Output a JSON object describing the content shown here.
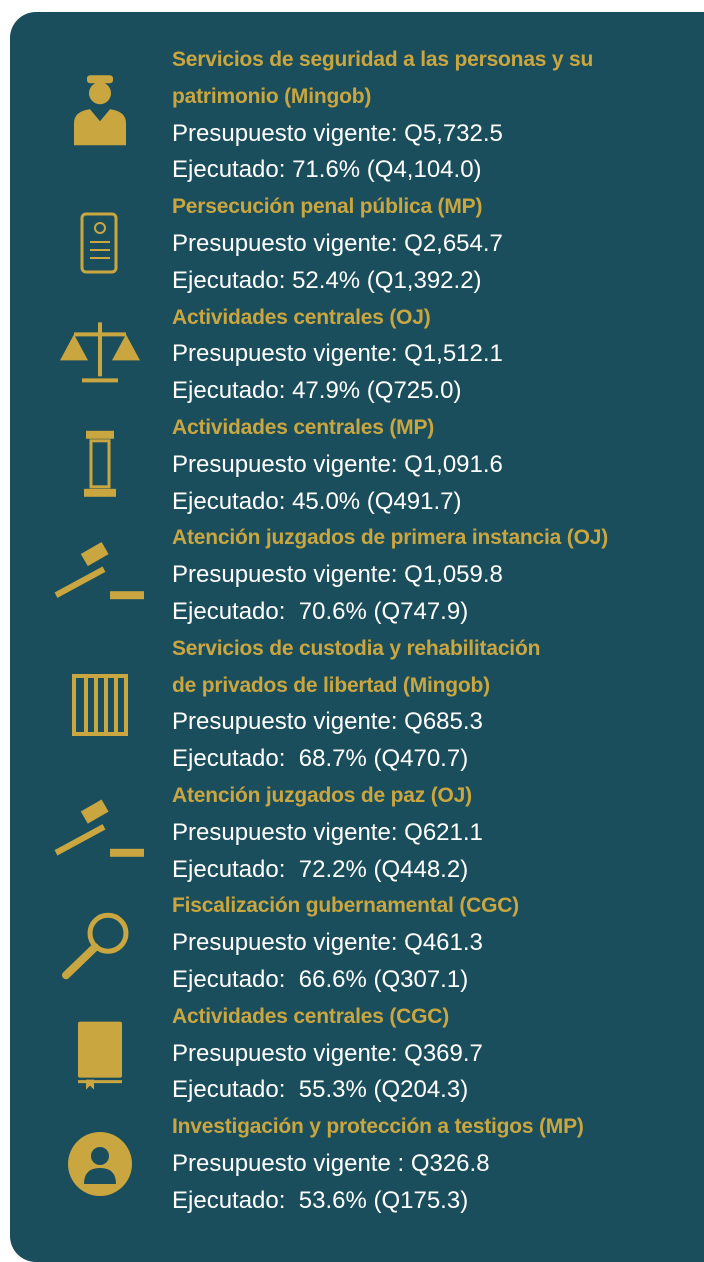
{
  "items": [
    {
      "title": [
        "Servicios de seguridad a las personas y su",
        "patrimonio (Mingob)"
      ],
      "budget": "Presupuesto vigente: Q5,732.5",
      "executed": "Ejecutado: 71.6% (Q4,104.0)"
    },
    {
      "title": [
        "Persecución penal pública (MP)"
      ],
      "budget": "Presupuesto vigente: Q2,654.7",
      "executed": "Ejecutado: 52.4% (Q1,392.2)"
    },
    {
      "title": [
        "Actividades centrales (OJ)"
      ],
      "budget": "Presupuesto vigente: Q1,512.1",
      "executed": "Ejecutado: 47.9% (Q725.0)"
    },
    {
      "title": [
        "Actividades centrales (MP)"
      ],
      "budget": "Presupuesto vigente: Q1,091.6",
      "executed": "Ejecutado: 45.0% (Q491.7)"
    },
    {
      "title": [
        "Atención juzgados de primera instancia (OJ)"
      ],
      "budget": "Presupuesto vigente: Q1,059.8",
      "executed": "Ejecutado:  70.6% (Q747.9)"
    },
    {
      "title": [
        "Servicios de custodia y rehabilitación",
        "de privados de libertad (Mingob)"
      ],
      "budget": "Presupuesto vigente: Q685.3",
      "executed": "Ejecutado:  68.7% (Q470.7)"
    },
    {
      "title": [
        "Atención juzgados de paz (OJ)"
      ],
      "budget": "Presupuesto vigente: Q621.1",
      "executed": "Ejecutado:  72.2% (Q448.2)"
    },
    {
      "title": [
        "Fiscalización gubernamental (CGC)"
      ],
      "budget": "Presupuesto vigente: Q461.3",
      "executed": "Ejecutado:  66.6% (Q307.1)"
    },
    {
      "title": [
        "Actividades centrales (CGC)"
      ],
      "budget": "Presupuesto vigente: Q369.7",
      "executed": "Ejecutado:  55.3% (Q204.3)"
    },
    {
      "title": [
        "Investigación y protección a testigos (MP)"
      ],
      "budget": "Presupuesto vigente : Q326.8",
      "executed": "Ejecutado:  53.6% (Q175.3)"
    }
  ]
}
